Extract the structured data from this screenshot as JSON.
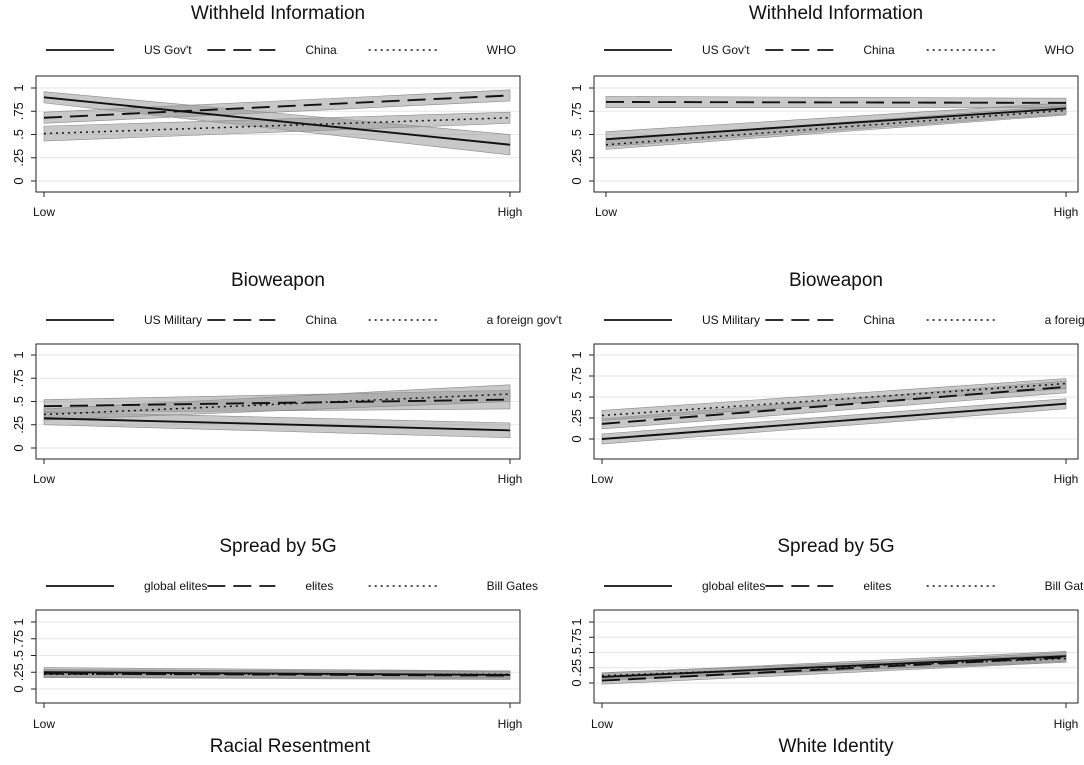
{
  "x_labels": {
    "left": "Racial Resentment",
    "right": "White Identity"
  },
  "charts": [
    {
      "id": "rr-withheld",
      "title": "Withheld Information",
      "type": "line",
      "x_ticks": [
        "Low",
        "High"
      ],
      "y_ticks": [
        "0",
        ".25",
        ".5",
        ".75",
        "1"
      ],
      "ylim": [
        0,
        1.1
      ],
      "legend": [
        "US Gov't",
        "China",
        "WHO"
      ],
      "series": [
        {
          "name": "US Gov't",
          "style": "solid",
          "values": [
            0.9,
            0.39
          ],
          "ci": [
            [
              0.84,
              0.96
            ],
            [
              0.28,
              0.5
            ]
          ]
        },
        {
          "name": "China",
          "style": "dash",
          "values": [
            0.68,
            0.92
          ],
          "ci": [
            [
              0.62,
              0.74
            ],
            [
              0.86,
              0.98
            ]
          ]
        },
        {
          "name": "WHO",
          "style": "dot",
          "values": [
            0.51,
            0.68
          ],
          "ci": [
            [
              0.43,
              0.59
            ],
            [
              0.62,
              0.74
            ]
          ]
        }
      ]
    },
    {
      "id": "wi-withheld",
      "title": "Withheld Information",
      "type": "line",
      "x_ticks": [
        "Low",
        "High"
      ],
      "y_ticks": [
        "0",
        ".25",
        ".5",
        ".75",
        "1"
      ],
      "ylim": [
        0,
        1.1
      ],
      "legend": [
        "US Gov't",
        "China",
        "WHO"
      ],
      "series": [
        {
          "name": "US Gov't",
          "style": "solid",
          "values": [
            0.45,
            0.78
          ],
          "ci": [
            [
              0.37,
              0.53
            ],
            [
              0.72,
              0.84
            ]
          ]
        },
        {
          "name": "China",
          "style": "dash",
          "values": [
            0.85,
            0.84
          ],
          "ci": [
            [
              0.79,
              0.91
            ],
            [
              0.79,
              0.89
            ]
          ]
        },
        {
          "name": "WHO",
          "style": "dot",
          "values": [
            0.39,
            0.76
          ],
          "ci": [
            [
              0.34,
              0.44
            ],
            [
              0.71,
              0.81
            ]
          ]
        }
      ]
    },
    {
      "id": "rr-bioweapon",
      "title": "Bioweapon",
      "type": "line",
      "x_ticks": [
        "Low",
        "High"
      ],
      "y_ticks": [
        "0",
        ".25",
        ".5",
        ".75",
        "1"
      ],
      "ylim": [
        0,
        1.1
      ],
      "legend": [
        "US Military",
        "China",
        "a foreign gov't"
      ],
      "series": [
        {
          "name": "US Military",
          "style": "solid",
          "values": [
            0.32,
            0.19
          ],
          "ci": [
            [
              0.25,
              0.39
            ],
            [
              0.11,
              0.27
            ]
          ]
        },
        {
          "name": "China",
          "style": "dash",
          "values": [
            0.45,
            0.52
          ],
          "ci": [
            [
              0.38,
              0.52
            ],
            [
              0.42,
              0.62
            ]
          ]
        },
        {
          "name": "a foreign gov't",
          "style": "dot",
          "values": [
            0.36,
            0.58
          ],
          "ci": [
            [
              0.3,
              0.42
            ],
            [
              0.5,
              0.68
            ]
          ]
        }
      ]
    },
    {
      "id": "wi-bioweapon",
      "title": "Bioweapon",
      "type": "line",
      "x_ticks": [
        "Low",
        "High"
      ],
      "y_ticks": [
        "0",
        ".25",
        ".5",
        ".75",
        "1"
      ],
      "ylim": [
        0,
        1.1
      ],
      "legend": [
        "US Military",
        "China",
        "a foreign gov't"
      ],
      "series": [
        {
          "name": "US Military",
          "style": "solid",
          "values": [
            0.0,
            0.42
          ],
          "ci": [
            [
              -0.06,
              0.06
            ],
            [
              0.36,
              0.48
            ]
          ]
        },
        {
          "name": "China",
          "style": "dash",
          "values": [
            0.18,
            0.62
          ],
          "ci": [
            [
              0.12,
              0.24
            ],
            [
              0.55,
              0.69
            ]
          ]
        },
        {
          "name": "a foreign gov't",
          "style": "dot",
          "values": [
            0.28,
            0.66
          ],
          "ci": [
            [
              0.22,
              0.34
            ],
            [
              0.6,
              0.72
            ]
          ]
        }
      ]
    },
    {
      "id": "rr-5g",
      "title": "Spread by 5G",
      "type": "line",
      "x_ticks": [
        "Low",
        "High"
      ],
      "y_ticks": [
        "0",
        ".25",
        ".5",
        ".75",
        "1"
      ],
      "ylim": [
        0,
        1.1
      ],
      "legend": [
        "global elites",
        "elites",
        "Bill Gates"
      ],
      "series": [
        {
          "name": "global elites",
          "style": "solid",
          "values": [
            0.25,
            0.21
          ],
          "ci": [
            [
              0.18,
              0.32
            ],
            [
              0.15,
              0.27
            ]
          ]
        },
        {
          "name": "elites",
          "style": "dash",
          "values": [
            0.23,
            0.2
          ],
          "ci": [
            [
              0.17,
              0.29
            ],
            [
              0.14,
              0.26
            ]
          ]
        },
        {
          "name": "Bill Gates",
          "style": "dot",
          "values": [
            0.22,
            0.22
          ],
          "ci": [
            [
              0.17,
              0.27
            ],
            [
              0.17,
              0.27
            ]
          ]
        }
      ]
    },
    {
      "id": "wi-5g",
      "title": "Spread by 5G",
      "type": "line",
      "x_ticks": [
        "Low",
        "High"
      ],
      "y_ticks": [
        "0",
        ".25",
        ".5",
        ".75",
        "1"
      ],
      "ylim": [
        0,
        1.1
      ],
      "legend": [
        "global elites",
        "elites",
        "Bill Gates"
      ],
      "series": [
        {
          "name": "global elites",
          "style": "solid",
          "values": [
            0.1,
            0.44
          ],
          "ci": [
            [
              0.04,
              0.16
            ],
            [
              0.36,
              0.52
            ]
          ]
        },
        {
          "name": "elites",
          "style": "dash",
          "values": [
            0.04,
            0.42
          ],
          "ci": [
            [
              -0.02,
              0.1
            ],
            [
              0.34,
              0.5
            ]
          ]
        },
        {
          "name": "Bill Gates",
          "style": "dot",
          "values": [
            0.12,
            0.4
          ],
          "ci": [
            [
              0.07,
              0.17
            ],
            [
              0.34,
              0.46
            ]
          ]
        }
      ]
    }
  ]
}
